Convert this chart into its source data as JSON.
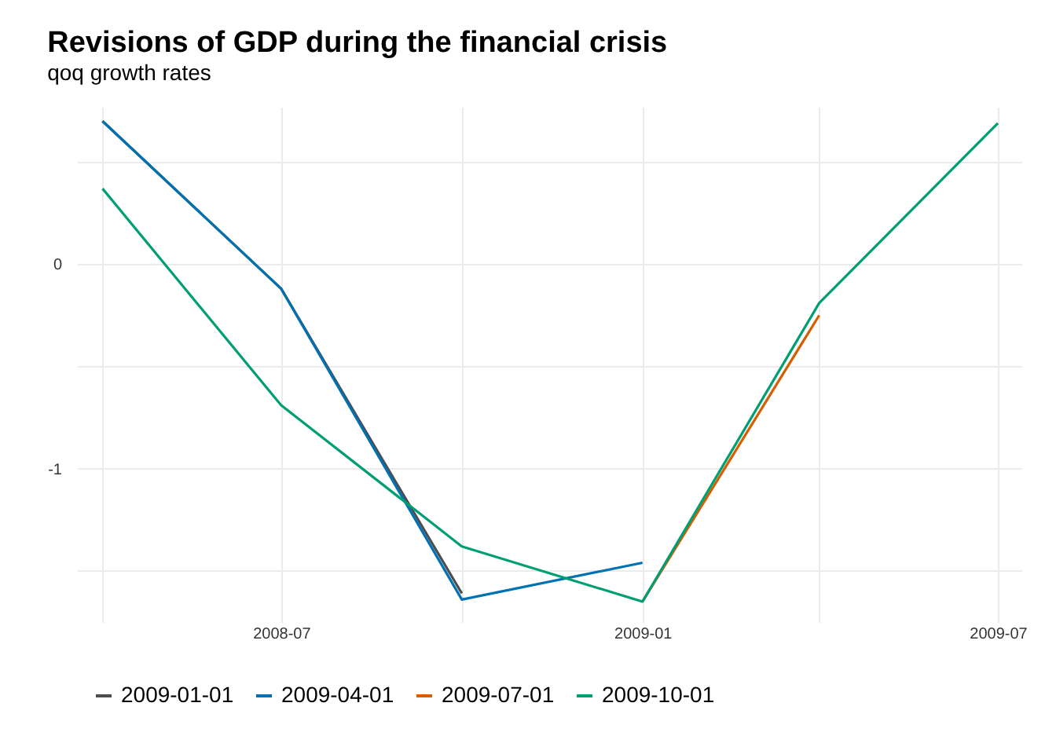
{
  "chart_data": {
    "type": "line",
    "title": "Revisions of GDP during the financial crisis",
    "subtitle": "qoq growth rates",
    "x": [
      "2008-04-01",
      "2008-07-01",
      "2008-10-01",
      "2009-01-01",
      "2009-04-01",
      "2009-07-01"
    ],
    "series": [
      {
        "name": "2009-01-01",
        "color": "#4d4d4d",
        "values": [
          0.7,
          -0.12,
          -1.61,
          null,
          null,
          null
        ]
      },
      {
        "name": "2009-04-01",
        "color": "#0072b2",
        "values": [
          0.7,
          -0.12,
          -1.64,
          -1.46,
          null,
          null
        ]
      },
      {
        "name": "2009-07-01",
        "color": "#d55e00",
        "values": [
          null,
          null,
          null,
          -1.65,
          -0.25,
          null
        ]
      },
      {
        "name": "2009-10-01",
        "color": "#009e73",
        "values": [
          0.37,
          -0.69,
          -1.38,
          -1.65,
          -0.19,
          0.69
        ]
      }
    ],
    "xlim": [
      "2008-03-19",
      "2009-07-13"
    ],
    "xticks": [
      {
        "value": "2008-04-01",
        "label": null
      },
      {
        "value": "2008-07-01",
        "label": "2008-07"
      },
      {
        "value": "2008-10-01",
        "label": null
      },
      {
        "value": "2009-01-01",
        "label": "2009-01"
      },
      {
        "value": "2009-04-01",
        "label": null
      },
      {
        "value": "2009-07-01",
        "label": "2009-07"
      }
    ],
    "ylim": [
      -1.75,
      0.77
    ],
    "yticks": [
      {
        "value": -1.5,
        "label": null
      },
      -1,
      {
        "value": -0.5,
        "label": null
      },
      0,
      {
        "value": 0.5,
        "label": null
      }
    ],
    "grid": true,
    "legend": "bottom",
    "marker": "none",
    "line_style": "solid"
  }
}
